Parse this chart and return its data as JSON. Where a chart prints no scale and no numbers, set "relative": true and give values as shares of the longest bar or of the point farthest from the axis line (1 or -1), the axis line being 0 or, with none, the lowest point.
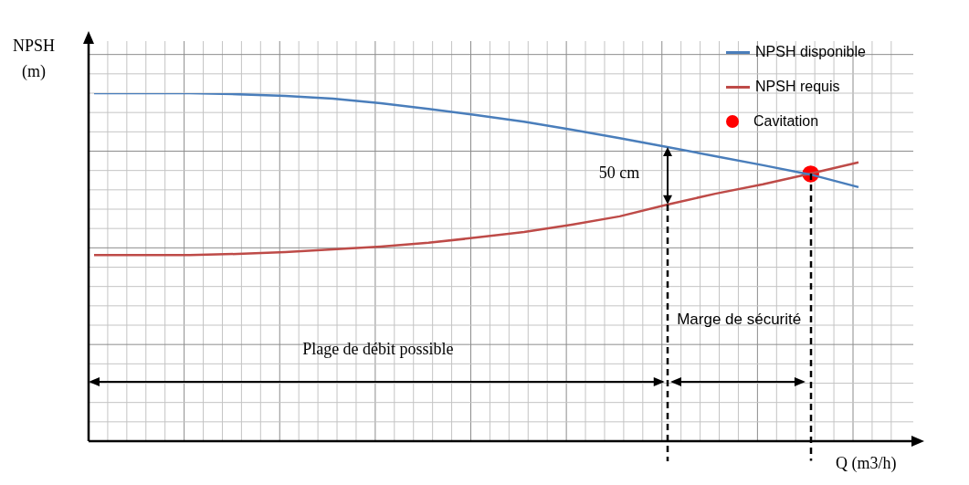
{
  "chart_data": {
    "type": "line",
    "xlabel": "Q (m3/h)",
    "ylabel": "NPSH (m)",
    "relative": true,
    "grid": true,
    "legend": "top right",
    "marker": "none",
    "categories": [
      null,
      null,
      null,
      null,
      null,
      null,
      null,
      null,
      null,
      null,
      null,
      null,
      null,
      null,
      null,
      null,
      null
    ],
    "series": [
      {
        "name": "NPSH disponible",
        "color": "#4a7ebb",
        "values": [
          1.0,
          1.0,
          1.0,
          0.997,
          0.992,
          0.984,
          0.971,
          0.955,
          0.937,
          0.918,
          0.895,
          0.871,
          0.845,
          0.819,
          0.793,
          0.766,
          0.73
        ]
      },
      {
        "name": "NPSH requis",
        "color": "#be4b48",
        "values": [
          0.535,
          0.535,
          0.535,
          0.538,
          0.543,
          0.551,
          0.559,
          0.57,
          0.585,
          0.601,
          0.622,
          0.646,
          0.68,
          0.711,
          0.738,
          0.769,
          0.801
        ]
      },
      {
        "name": "Cavitation",
        "marker": "circle",
        "color": "#ff0000",
        "values": [
          null,
          null,
          null,
          null,
          null,
          null,
          null,
          null,
          null,
          null,
          null,
          null,
          null,
          null,
          null,
          0.768,
          null
        ]
      }
    ],
    "annotations": [
      "50 cm",
      "Plage de débit possible",
      "Marge de sécurité"
    ]
  }
}
